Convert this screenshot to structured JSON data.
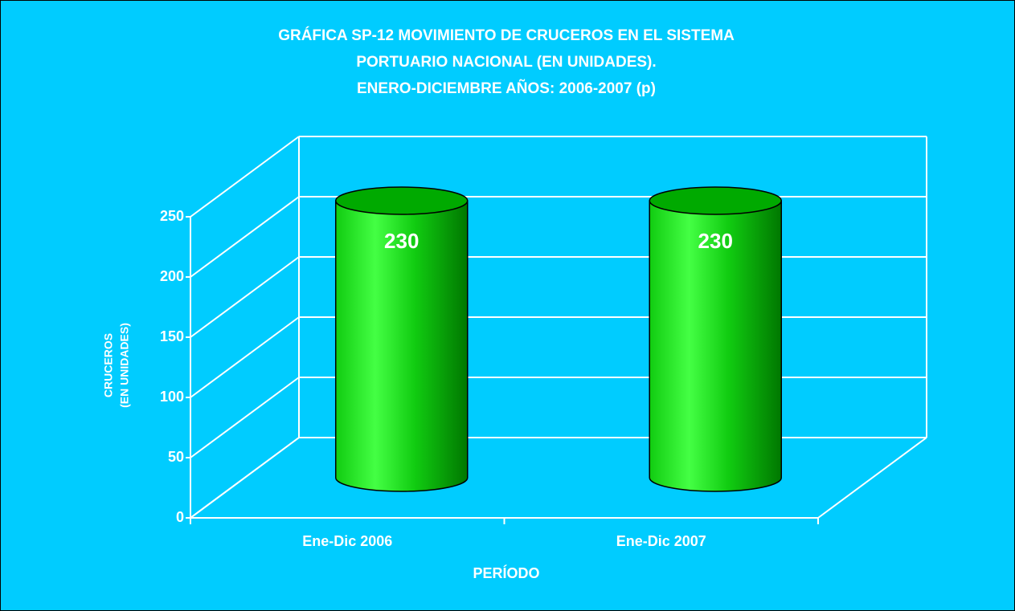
{
  "chart_data": {
    "type": "bar3d-cylinder",
    "title": [
      "GRÁFICA SP-12 MOVIMIENTO DE CRUCEROS EN EL SISTEMA",
      "PORTUARIO NACIONAL (EN UNIDADES).",
      "ENERO-DICIEMBRE AÑOS: 2006-2007 (p)"
    ],
    "ylabel": [
      "CRUCEROS",
      "(EN UNIDADES)"
    ],
    "xlabel": "PERÍODO",
    "categories": [
      "Ene-Dic 2006",
      "Ene-Dic 2007"
    ],
    "values": [
      230,
      230
    ],
    "color": "#00dd00",
    "ylim": [
      0,
      250
    ],
    "yticks": [
      0,
      50,
      100,
      150,
      200,
      250
    ],
    "grid": true
  }
}
